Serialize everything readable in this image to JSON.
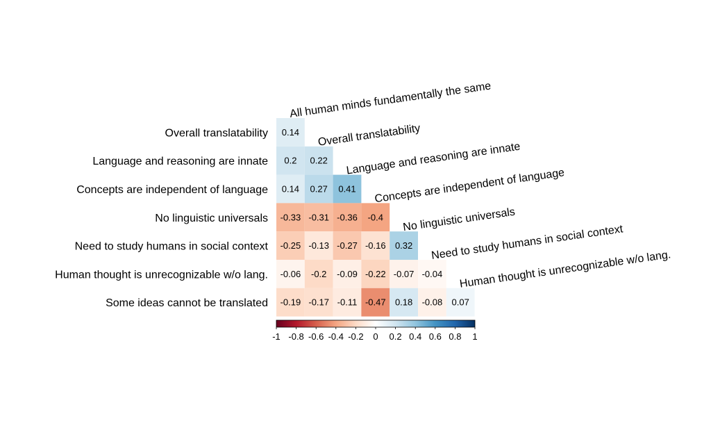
{
  "chart_data": {
    "type": "heatmap",
    "row_labels": [
      "Overall translatability",
      "Language and reasoning are innate",
      "Concepts are independent of language",
      "No linguistic universals",
      "Need to study humans in social context",
      "Human thought is unrecognizable w/o lang.",
      "Some ideas cannot be translated"
    ],
    "col_labels": [
      "All human minds fundamentally the same",
      "Overall translatability",
      "Language and reasoning are innate",
      "Concepts are independent of language",
      "No linguistic universals",
      "Need to study humans in social context",
      "Human thought is unrecognizable w/o lang."
    ],
    "values": [
      [
        0.14
      ],
      [
        0.2,
        0.22
      ],
      [
        0.14,
        0.27,
        0.41
      ],
      [
        -0.33,
        -0.31,
        -0.36,
        -0.4
      ],
      [
        -0.25,
        -0.13,
        -0.27,
        -0.16,
        0.32
      ],
      [
        -0.06,
        -0.2,
        -0.09,
        -0.22,
        -0.07,
        -0.04
      ],
      [
        -0.19,
        -0.17,
        -0.11,
        -0.47,
        0.18,
        -0.08,
        0.07
      ]
    ],
    "value_labels": [
      [
        "0.14"
      ],
      [
        "0.2",
        "0.22"
      ],
      [
        "0.14",
        "0.27",
        "0.41"
      ],
      [
        "-0.33",
        "-0.31",
        "-0.36",
        "-0.4"
      ],
      [
        "-0.25",
        "-0.13",
        "-0.27",
        "-0.16",
        "0.32"
      ],
      [
        "-0.06",
        "-0.2",
        "-0.09",
        "-0.22",
        "-0.07",
        "-0.04"
      ],
      [
        "-0.19",
        "-0.17",
        "-0.11",
        "-0.47",
        "0.18",
        "-0.08",
        "0.07"
      ]
    ],
    "color_scale": {
      "range": [
        -1,
        1
      ],
      "colors": [
        "#67001f",
        "#b2182b",
        "#d6604d",
        "#f4a582",
        "#fddbc7",
        "#ffffff",
        "#d1e5f0",
        "#92c5de",
        "#4393c3",
        "#2166ac",
        "#053061"
      ],
      "ticks": [
        "-1",
        "-0.8",
        "-0.6",
        "-0.4",
        "-0.2",
        "0",
        "0.2",
        "0.4",
        "0.6",
        "0.8",
        "1"
      ],
      "orientation": "horizontal"
    },
    "shape": "lower-triangle"
  }
}
